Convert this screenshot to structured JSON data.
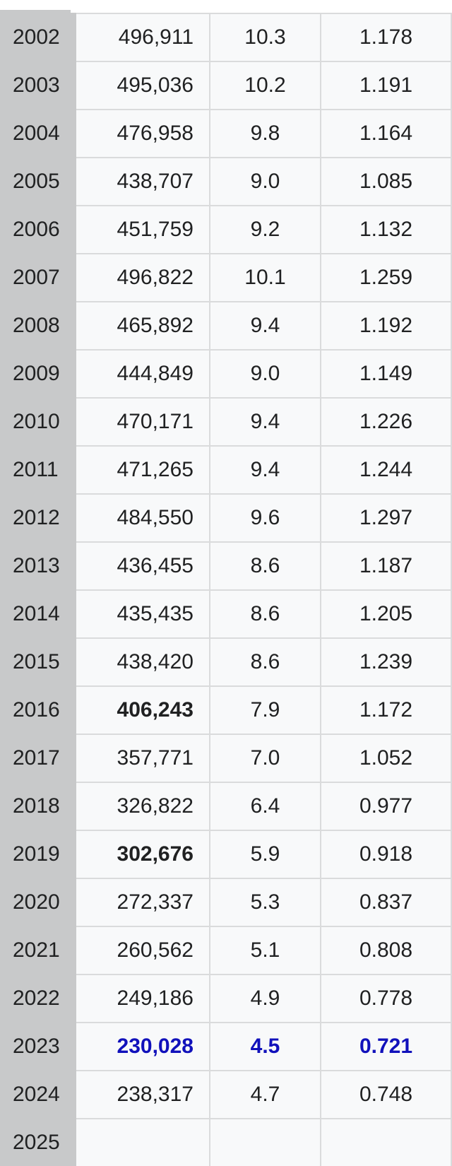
{
  "table": {
    "rows": [
      {
        "year": "2002",
        "births": "496,911",
        "rate": "10.3",
        "tfr": "1.178",
        "style": ""
      },
      {
        "year": "2003",
        "births": "495,036",
        "rate": "10.2",
        "tfr": "1.191",
        "style": ""
      },
      {
        "year": "2004",
        "births": "476,958",
        "rate": "9.8",
        "tfr": "1.164",
        "style": ""
      },
      {
        "year": "2005",
        "births": "438,707",
        "rate": "9.0",
        "tfr": "1.085",
        "style": ""
      },
      {
        "year": "2006",
        "births": "451,759",
        "rate": "9.2",
        "tfr": "1.132",
        "style": ""
      },
      {
        "year": "2007",
        "births": "496,822",
        "rate": "10.1",
        "tfr": "1.259",
        "style": ""
      },
      {
        "year": "2008",
        "births": "465,892",
        "rate": "9.4",
        "tfr": "1.192",
        "style": ""
      },
      {
        "year": "2009",
        "births": "444,849",
        "rate": "9.0",
        "tfr": "1.149",
        "style": ""
      },
      {
        "year": "2010",
        "births": "470,171",
        "rate": "9.4",
        "tfr": "1.226",
        "style": ""
      },
      {
        "year": "2011",
        "births": "471,265",
        "rate": "9.4",
        "tfr": "1.244",
        "style": ""
      },
      {
        "year": "2012",
        "births": "484,550",
        "rate": "9.6",
        "tfr": "1.297",
        "style": ""
      },
      {
        "year": "2013",
        "births": "436,455",
        "rate": "8.6",
        "tfr": "1.187",
        "style": ""
      },
      {
        "year": "2014",
        "births": "435,435",
        "rate": "8.6",
        "tfr": "1.205",
        "style": ""
      },
      {
        "year": "2015",
        "births": "438,420",
        "rate": "8.6",
        "tfr": "1.239",
        "style": ""
      },
      {
        "year": "2016",
        "births": "406,243",
        "rate": "7.9",
        "tfr": "1.172",
        "style": "bold-births"
      },
      {
        "year": "2017",
        "births": "357,771",
        "rate": "7.0",
        "tfr": "1.052",
        "style": ""
      },
      {
        "year": "2018",
        "births": "326,822",
        "rate": "6.4",
        "tfr": "0.977",
        "style": ""
      },
      {
        "year": "2019",
        "births": "302,676",
        "rate": "5.9",
        "tfr": "0.918",
        "style": "bold-births"
      },
      {
        "year": "2020",
        "births": "272,337",
        "rate": "5.3",
        "tfr": "0.837",
        "style": ""
      },
      {
        "year": "2021",
        "births": "260,562",
        "rate": "5.1",
        "tfr": "0.808",
        "style": ""
      },
      {
        "year": "2022",
        "births": "249,186",
        "rate": "4.9",
        "tfr": "0.778",
        "style": ""
      },
      {
        "year": "2023",
        "births": "230,028",
        "rate": "4.5",
        "tfr": "0.721",
        "style": "lowest"
      },
      {
        "year": "2024",
        "births": "238,317",
        "rate": "4.7",
        "tfr": "0.748",
        "style": ""
      },
      {
        "year": "2025",
        "births": "",
        "rate": "",
        "tfr": "",
        "style": ""
      }
    ]
  },
  "colors": {
    "year_cell_bg": "#c8c9ca",
    "cell_bg": "#f8f9fa",
    "border": "#dadbdc",
    "text": "#202122",
    "highlight_blue": "#1111bb"
  }
}
